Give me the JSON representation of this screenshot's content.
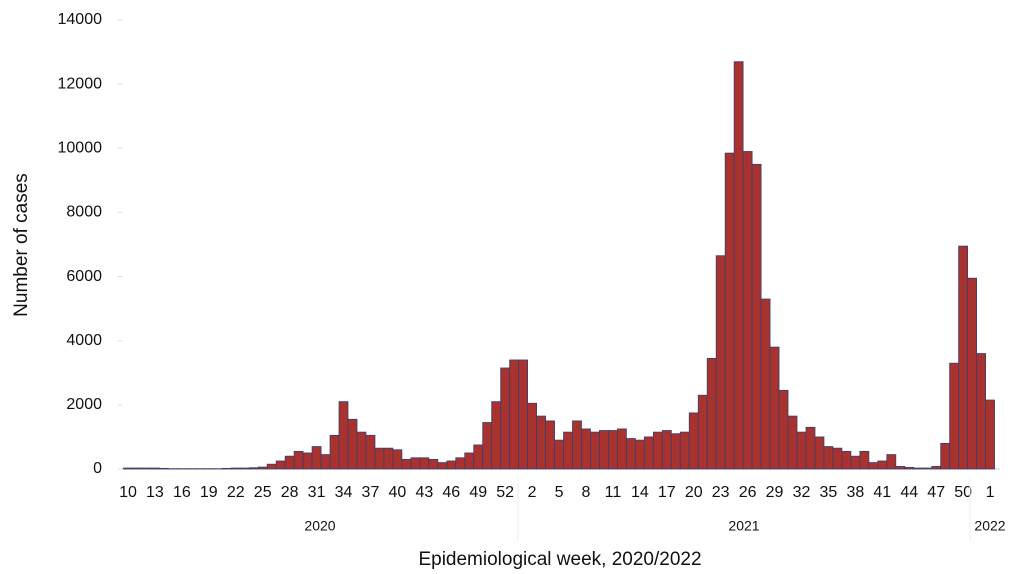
{
  "chart_data": {
    "type": "bar",
    "x_label": "Epidemiological week, 2020/2022",
    "y_label": "Number of cases",
    "categories": [
      "10",
      null,
      null,
      "13",
      null,
      null,
      "16",
      null,
      null,
      "19",
      null,
      null,
      "22",
      null,
      null,
      "25",
      null,
      null,
      "28",
      null,
      null,
      "31",
      null,
      null,
      "34",
      null,
      null,
      "37",
      null,
      null,
      "40",
      null,
      null,
      "43",
      null,
      null,
      "46",
      null,
      null,
      "49",
      null,
      null,
      "52",
      null,
      null,
      "2",
      null,
      null,
      "5",
      null,
      null,
      "8",
      null,
      null,
      "11",
      null,
      null,
      "14",
      null,
      null,
      "17",
      null,
      null,
      "20",
      null,
      null,
      "23",
      null,
      null,
      "26",
      null,
      null,
      "29",
      null,
      null,
      "32",
      null,
      null,
      "35",
      null,
      null,
      "38",
      null,
      null,
      "41",
      null,
      null,
      "44",
      null,
      null,
      "47",
      null,
      null,
      "50",
      null,
      null,
      "1"
    ],
    "values": [
      30,
      30,
      30,
      30,
      20,
      10,
      10,
      10,
      10,
      10,
      10,
      20,
      30,
      30,
      40,
      60,
      150,
      250,
      400,
      550,
      500,
      700,
      450,
      1050,
      2100,
      1550,
      1150,
      1050,
      650,
      650,
      600,
      300,
      350,
      350,
      300,
      200,
      250,
      350,
      500,
      750,
      1450,
      2100,
      3150,
      3400,
      3400,
      2050,
      1650,
      1500,
      900,
      1150,
      1500,
      1250,
      1150,
      1200,
      1200,
      1250,
      950,
      900,
      1000,
      1150,
      1200,
      1100,
      1150,
      1750,
      2300,
      3450,
      6650,
      9850,
      12700,
      9900,
      9500,
      5300,
      3800,
      2450,
      1650,
      1150,
      1300,
      1000,
      700,
      650,
      550,
      400,
      550,
      200,
      250,
      450,
      80,
      50,
      30,
      30,
      80,
      800,
      3300,
      6950,
      5950,
      3600,
      2150
    ],
    "x_groups": [
      "2020",
      "2021",
      "2022"
    ],
    "color": "#a8322d",
    "edge_color": "#3a3f6e",
    "ylim": [
      0,
      14000
    ],
    "yticks": [
      0,
      2000,
      4000,
      6000,
      8000,
      10000,
      12000,
      14000
    ],
    "grid": false
  }
}
